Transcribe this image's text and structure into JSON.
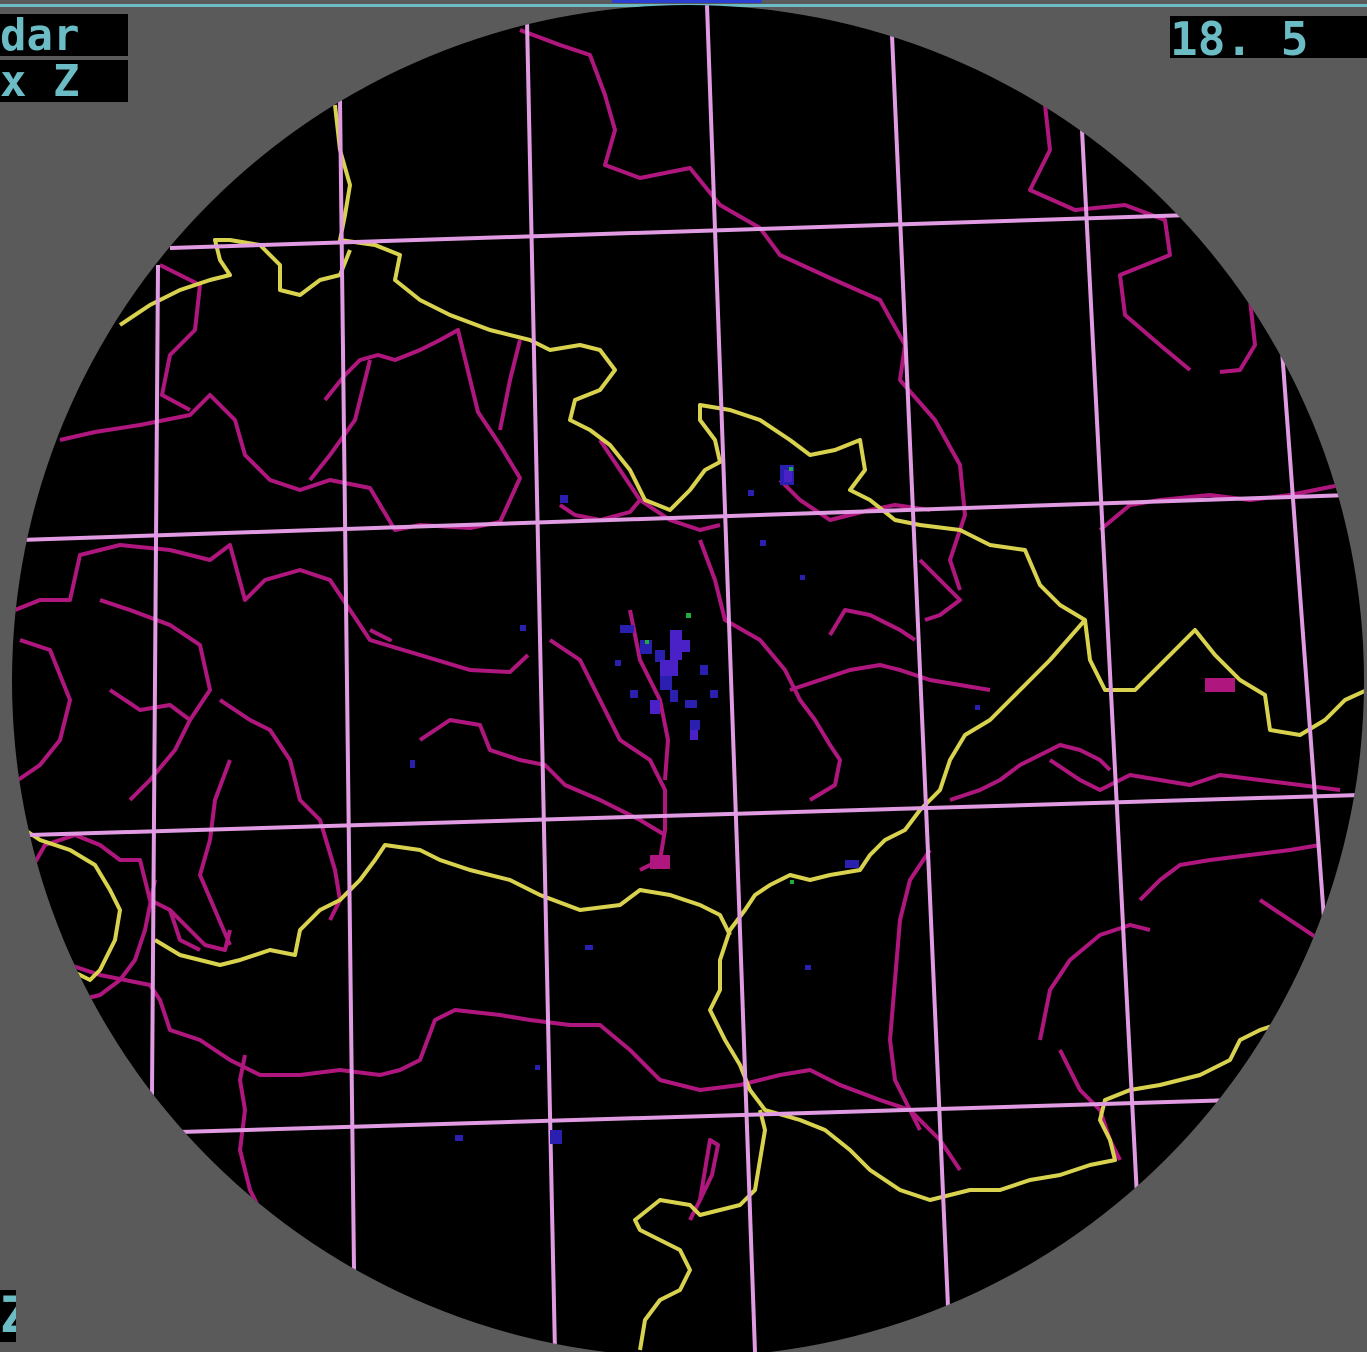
{
  "display": {
    "product_label": "dar",
    "parameter_label": "x Z",
    "time_label": "18. 5",
    "corner_label": "Z"
  },
  "colors": {
    "frame": "#5a5a5a",
    "scope": "#000000",
    "text": "#6bbcc4",
    "text_background": "#000000",
    "grid": "#e19be3",
    "rivers": "#b0177e",
    "borders": "#d8d24e",
    "echo_weak": "#2b1fb0",
    "echo_mid": "#4a21c6",
    "echo_strong": "#1fae3c"
  },
  "map_layers": [
    {
      "name": "grid",
      "icon": "grid-lines-icon"
    },
    {
      "name": "rivers",
      "icon": "river-lines-icon"
    },
    {
      "name": "borders",
      "icon": "border-lines-icon"
    },
    {
      "name": "radar-echoes",
      "icon": "precipitation-echo-icon"
    }
  ]
}
